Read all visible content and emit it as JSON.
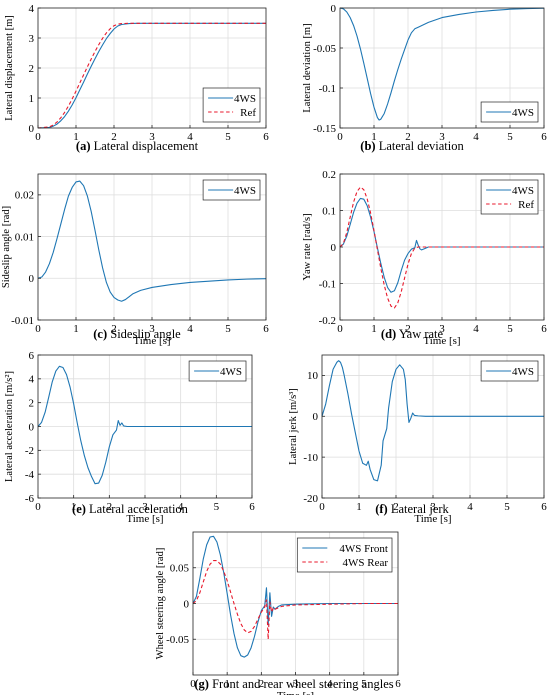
{
  "figure": {
    "colors": {
      "series_4ws": "#1f77b4",
      "series_ref": "#e8192c",
      "grid": "#dedede",
      "axis": "#262626"
    }
  },
  "chart_data": [
    {
      "id": "a",
      "type": "line",
      "caption_letter": "(a)",
      "caption_text": " Lateral displacement",
      "xlabel": "",
      "ylabel": "Lateral displacement [m]",
      "xlim": [
        0,
        6
      ],
      "ylim": [
        0,
        4
      ],
      "xticks": [
        0,
        1,
        2,
        3,
        4,
        5,
        6
      ],
      "xticklabels": [
        "0",
        "1",
        "2",
        "3",
        "4",
        "5",
        "6"
      ],
      "yticks": [
        0,
        1,
        2,
        3,
        4
      ],
      "yticklabels": [
        "0",
        "1",
        "2",
        "3",
        "4"
      ],
      "grid": true,
      "legend_placement": "bottom-right",
      "series": [
        {
          "name": "4WS",
          "style": "solid",
          "color": "#1f77b4",
          "x": [
            0,
            0.3,
            0.4,
            0.5,
            0.6,
            0.7,
            0.8,
            0.9,
            1.0,
            1.1,
            1.2,
            1.3,
            1.4,
            1.5,
            1.6,
            1.7,
            1.8,
            1.9,
            2.0,
            2.1,
            2.2,
            2.4,
            2.6,
            3.0,
            4.0,
            5.0,
            6.0
          ],
          "y": [
            0,
            0.02,
            0.06,
            0.13,
            0.24,
            0.38,
            0.56,
            0.77,
            1.01,
            1.27,
            1.53,
            1.8,
            2.06,
            2.31,
            2.55,
            2.77,
            2.98,
            3.15,
            3.3,
            3.4,
            3.45,
            3.48,
            3.49,
            3.49,
            3.49,
            3.49,
            3.49
          ]
        },
        {
          "name": "Ref",
          "style": "dashed",
          "color": "#e8192c",
          "x": [
            0,
            0.3,
            0.4,
            0.5,
            0.6,
            0.7,
            0.8,
            0.9,
            1.0,
            1.1,
            1.2,
            1.3,
            1.4,
            1.5,
            1.6,
            1.7,
            1.8,
            1.9,
            2.0,
            2.1,
            2.2,
            2.4,
            2.6,
            3.0,
            4.0,
            5.0,
            6.0
          ],
          "y": [
            0,
            0.04,
            0.1,
            0.2,
            0.34,
            0.52,
            0.73,
            0.97,
            1.23,
            1.5,
            1.77,
            2.04,
            2.3,
            2.55,
            2.78,
            2.99,
            3.17,
            3.31,
            3.41,
            3.46,
            3.48,
            3.49,
            3.49,
            3.49,
            3.49,
            3.49,
            3.49
          ]
        }
      ]
    },
    {
      "id": "b",
      "type": "line",
      "caption_letter": "(b)",
      "caption_text": " Lateral deviation",
      "xlabel": "",
      "ylabel": "Lateral deviation [m]",
      "xlim": [
        0,
        6
      ],
      "ylim": [
        -0.15,
        0
      ],
      "xticks": [
        0,
        1,
        2,
        3,
        4,
        5,
        6
      ],
      "xticklabels": [
        "0",
        "1",
        "2",
        "3",
        "4",
        "5",
        "6"
      ],
      "yticks": [
        -0.15,
        -0.1,
        -0.05,
        0
      ],
      "yticklabels": [
        "-0.15",
        "-0.1",
        "-0.05",
        "0"
      ],
      "grid": true,
      "legend_placement": "bottom-right",
      "series": [
        {
          "name": "4WS",
          "style": "solid",
          "color": "#1f77b4",
          "x": [
            0,
            0.1,
            0.2,
            0.3,
            0.4,
            0.5,
            0.6,
            0.7,
            0.8,
            0.9,
            1.0,
            1.1,
            1.15,
            1.2,
            1.3,
            1.4,
            1.5,
            1.6,
            1.7,
            1.8,
            1.9,
            2.0,
            2.1,
            2.2,
            2.3,
            2.4,
            2.6,
            2.8,
            3.0,
            3.5,
            4.0,
            4.5,
            5.0,
            5.5,
            6.0
          ],
          "y": [
            0,
            -0.001,
            -0.005,
            -0.012,
            -0.022,
            -0.035,
            -0.051,
            -0.069,
            -0.088,
            -0.107,
            -0.124,
            -0.137,
            -0.14,
            -0.139,
            -0.132,
            -0.12,
            -0.106,
            -0.091,
            -0.077,
            -0.064,
            -0.052,
            -0.04,
            -0.031,
            -0.026,
            -0.024,
            -0.022,
            -0.018,
            -0.015,
            -0.012,
            -0.008,
            -0.005,
            -0.003,
            -0.0015,
            -0.0007,
            -0.0003
          ]
        }
      ]
    },
    {
      "id": "c",
      "type": "line",
      "caption_letter": "(c)",
      "caption_text": " Sideslip angle",
      "xlabel": "Time [s]",
      "ylabel": "Sideslip angle [rad]",
      "xlim": [
        0,
        6
      ],
      "ylim": [
        -0.01,
        0.025
      ],
      "xticks": [
        0,
        1,
        2,
        3,
        4,
        5,
        6
      ],
      "xticklabels": [
        "0",
        "1",
        "2",
        "3",
        "4",
        "5",
        "6"
      ],
      "yticks": [
        -0.01,
        0,
        0.01,
        0.02
      ],
      "yticklabels": [
        "-0.01",
        "0",
        "0.01",
        "0.02"
      ],
      "grid": true,
      "legend_placement": "top-right",
      "series": [
        {
          "name": "4WS",
          "style": "solid",
          "color": "#1f77b4",
          "x": [
            0,
            0.1,
            0.2,
            0.3,
            0.4,
            0.5,
            0.6,
            0.7,
            0.8,
            0.9,
            1.0,
            1.1,
            1.2,
            1.3,
            1.4,
            1.5,
            1.6,
            1.7,
            1.8,
            1.9,
            2.0,
            2.1,
            2.2,
            2.3,
            2.4,
            2.5,
            2.7,
            3.0,
            3.5,
            4.0,
            4.5,
            5.0,
            5.5,
            6.0
          ],
          "y": [
            0,
            0.0003,
            0.0015,
            0.0035,
            0.0062,
            0.0095,
            0.013,
            0.0165,
            0.0197,
            0.0218,
            0.0231,
            0.0233,
            0.0222,
            0.0197,
            0.016,
            0.0115,
            0.0068,
            0.0025,
            -0.001,
            -0.0033,
            -0.0046,
            -0.0052,
            -0.0055,
            -0.0051,
            -0.0044,
            -0.0037,
            -0.0029,
            -0.0022,
            -0.0015,
            -0.001,
            -0.0007,
            -0.0004,
            -0.0002,
            -0.0001
          ]
        }
      ]
    },
    {
      "id": "d",
      "type": "line",
      "caption_letter": "(d)",
      "caption_text": " Yaw rate",
      "xlabel": "Time [s]",
      "ylabel": "Yaw rate [rad/s]",
      "xlim": [
        0,
        6
      ],
      "ylim": [
        -0.2,
        0.2
      ],
      "xticks": [
        0,
        1,
        2,
        3,
        4,
        5,
        6
      ],
      "xticklabels": [
        "0",
        "1",
        "2",
        "3",
        "4",
        "5",
        "6"
      ],
      "yticks": [
        -0.2,
        -0.1,
        0,
        0.1,
        0.2
      ],
      "yticklabels": [
        "-0.2",
        "-0.1",
        "0",
        "0.1",
        "0.2"
      ],
      "grid": true,
      "legend_placement": "top-right",
      "series": [
        {
          "name": "4WS",
          "style": "solid",
          "color": "#1f77b4",
          "x": [
            0,
            0.1,
            0.2,
            0.3,
            0.4,
            0.5,
            0.6,
            0.7,
            0.8,
            0.9,
            1.0,
            1.1,
            1.2,
            1.3,
            1.4,
            1.5,
            1.6,
            1.7,
            1.8,
            1.9,
            2.0,
            2.1,
            2.2,
            2.25,
            2.3,
            2.35,
            2.4,
            2.5,
            2.6,
            3.0,
            4.0,
            5.0,
            6.0
          ],
          "y": [
            0,
            0.008,
            0.03,
            0.062,
            0.095,
            0.12,
            0.133,
            0.131,
            0.113,
            0.082,
            0.042,
            -0.002,
            -0.045,
            -0.083,
            -0.111,
            -0.124,
            -0.12,
            -0.098,
            -0.065,
            -0.036,
            -0.018,
            -0.006,
            -0.002,
            0.018,
            0.005,
            -0.005,
            -0.008,
            -0.004,
            0.0,
            0.0,
            0.0,
            0.0,
            0.0
          ]
        },
        {
          "name": "Ref",
          "style": "dashed",
          "color": "#e8192c",
          "x": [
            0,
            0.1,
            0.2,
            0.3,
            0.4,
            0.5,
            0.6,
            0.7,
            0.8,
            0.9,
            1.0,
            1.1,
            1.2,
            1.3,
            1.4,
            1.5,
            1.6,
            1.7,
            1.8,
            1.9,
            2.0,
            2.1,
            2.2,
            2.3,
            2.4,
            3.0,
            4.0,
            5.0,
            6.0
          ],
          "y": [
            0,
            0.01,
            0.04,
            0.082,
            0.123,
            0.152,
            0.164,
            0.157,
            0.132,
            0.093,
            0.045,
            -0.007,
            -0.058,
            -0.104,
            -0.14,
            -0.162,
            -0.167,
            -0.153,
            -0.123,
            -0.085,
            -0.047,
            -0.018,
            -0.003,
            0.0,
            0.0,
            0.0,
            0.0,
            0.0,
            0.0
          ]
        }
      ]
    },
    {
      "id": "e",
      "type": "line",
      "caption_letter": "(e)",
      "caption_text": " Lateral acceleration",
      "xlabel": "Time [s]",
      "ylabel": "Lateral acceleration [m/s²]",
      "xlim": [
        0,
        6
      ],
      "ylim": [
        -6,
        6
      ],
      "xticks": [
        0,
        1,
        2,
        3,
        4,
        5,
        6
      ],
      "xticklabels": [
        "0",
        "1",
        "2",
        "3",
        "4",
        "5",
        "6"
      ],
      "yticks": [
        -6,
        -4,
        -2,
        0,
        2,
        4,
        6
      ],
      "yticklabels": [
        "-6",
        "-4",
        "-2",
        "0",
        "2",
        "4",
        "6"
      ],
      "grid": true,
      "legend_placement": "top-right",
      "series": [
        {
          "name": "4WS",
          "style": "solid",
          "color": "#1f77b4",
          "x": [
            0,
            0.1,
            0.2,
            0.3,
            0.4,
            0.5,
            0.6,
            0.7,
            0.8,
            0.9,
            1.0,
            1.1,
            1.2,
            1.3,
            1.4,
            1.5,
            1.6,
            1.7,
            1.8,
            1.9,
            2.0,
            2.1,
            2.2,
            2.25,
            2.3,
            2.35,
            2.4,
            2.5,
            3.0,
            4.0,
            5.0,
            6.0
          ],
          "y": [
            0,
            0.35,
            1.2,
            2.45,
            3.75,
            4.65,
            5.05,
            4.95,
            4.35,
            3.3,
            1.9,
            0.3,
            -1.2,
            -2.45,
            -3.45,
            -4.2,
            -4.8,
            -4.75,
            -4.1,
            -3.0,
            -1.7,
            -0.7,
            -0.3,
            0.5,
            0.1,
            0.3,
            0.05,
            0.0,
            0.0,
            0.0,
            0.0,
            0.0
          ]
        }
      ]
    },
    {
      "id": "f",
      "type": "line",
      "caption_letter": "(f)",
      "caption_text": " Lateral jerk",
      "xlabel": "Time [s]",
      "ylabel": "Lateral jerk [m/s³]",
      "xlim": [
        0,
        6
      ],
      "ylim": [
        -20,
        15
      ],
      "xticks": [
        0,
        1,
        2,
        3,
        4,
        5,
        6
      ],
      "xticklabels": [
        "0",
        "1",
        "2",
        "3",
        "4",
        "5",
        "6"
      ],
      "yticks": [
        -20,
        -10,
        0,
        10
      ],
      "yticklabels": [
        "-20",
        "-10",
        "0",
        "10"
      ],
      "grid": true,
      "legend_placement": "top-right",
      "series": [
        {
          "name": "4WS",
          "style": "solid",
          "color": "#1f77b4",
          "x": [
            0,
            0.1,
            0.2,
            0.3,
            0.4,
            0.45,
            0.5,
            0.55,
            0.6,
            0.7,
            0.8,
            0.9,
            1.0,
            1.1,
            1.2,
            1.25,
            1.3,
            1.4,
            1.5,
            1.6,
            1.65,
            1.7,
            1.75,
            1.8,
            1.9,
            2.0,
            2.1,
            2.2,
            2.25,
            2.3,
            2.35,
            2.4,
            2.45,
            2.5,
            2.6,
            2.8,
            3.0,
            4.0,
            5.0,
            6.0
          ],
          "y": [
            0,
            3.0,
            7.5,
            11.5,
            13.2,
            13.6,
            13.2,
            12.0,
            10.0,
            5.5,
            0.5,
            -4.0,
            -8.5,
            -11.5,
            -12.0,
            -11.0,
            -13.0,
            -15.5,
            -15.8,
            -12.0,
            -6.0,
            -4.5,
            -3.0,
            2.0,
            8.5,
            11.5,
            12.6,
            11.5,
            9.0,
            3.0,
            -1.5,
            -0.5,
            0.8,
            0.2,
            0.1,
            0.0,
            0.0,
            0.0,
            0.0,
            0.0
          ]
        }
      ]
    },
    {
      "id": "g",
      "type": "line",
      "caption_letter": "(g)",
      "caption_text": " Front and rear wheel steering angles",
      "xlabel": "Time [s]",
      "ylabel": "Wheel steering angle [rad]",
      "xlim": [
        0,
        6
      ],
      "ylim": [
        -0.1,
        0.1
      ],
      "xticks": [
        0,
        1,
        2,
        3,
        4,
        5,
        6
      ],
      "xticklabels": [
        "0",
        "1",
        "2",
        "3",
        "4",
        "5",
        "6"
      ],
      "yticks": [
        -0.05,
        0,
        0.05
      ],
      "yticklabels": [
        "-0.05",
        "0",
        "0.05"
      ],
      "grid": true,
      "legend_placement": "top-right",
      "series": [
        {
          "name": "4WS Front",
          "style": "solid",
          "color": "#1f77b4",
          "x": [
            0,
            0.1,
            0.2,
            0.3,
            0.4,
            0.5,
            0.6,
            0.7,
            0.8,
            0.9,
            1.0,
            1.1,
            1.2,
            1.3,
            1.4,
            1.5,
            1.6,
            1.7,
            1.8,
            1.9,
            2.0,
            2.1,
            2.15,
            2.2,
            2.25,
            2.3,
            2.35,
            2.4,
            2.5,
            2.6,
            3.0,
            4.0,
            5.0,
            6.0
          ],
          "y": [
            0,
            0.01,
            0.035,
            0.062,
            0.082,
            0.093,
            0.094,
            0.086,
            0.068,
            0.043,
            0.014,
            -0.016,
            -0.042,
            -0.062,
            -0.073,
            -0.075,
            -0.072,
            -0.062,
            -0.046,
            -0.026,
            -0.01,
            -0.003,
            0.022,
            -0.03,
            0.015,
            -0.018,
            -0.005,
            -0.008,
            -0.004,
            -0.002,
            -0.001,
            0.0,
            0.0,
            0.0
          ]
        },
        {
          "name": "4WS Rear",
          "style": "dashed",
          "color": "#e8192c",
          "x": [
            0,
            0.1,
            0.2,
            0.3,
            0.4,
            0.5,
            0.6,
            0.7,
            0.8,
            0.9,
            1.0,
            1.1,
            1.2,
            1.3,
            1.4,
            1.5,
            1.6,
            1.7,
            1.8,
            1.9,
            2.0,
            2.1,
            2.15,
            2.2,
            2.25,
            2.3,
            2.35,
            2.4,
            2.5,
            2.6,
            3.0,
            4.0,
            5.0,
            6.0
          ],
          "y": [
            0,
            0.004,
            0.015,
            0.03,
            0.045,
            0.055,
            0.06,
            0.06,
            0.055,
            0.045,
            0.032,
            0.016,
            0.0,
            -0.015,
            -0.028,
            -0.037,
            -0.041,
            -0.039,
            -0.032,
            -0.022,
            -0.012,
            -0.005,
            0.005,
            -0.05,
            0.002,
            -0.012,
            -0.006,
            -0.008,
            -0.006,
            -0.004,
            -0.002,
            -0.001,
            0.0,
            0.0
          ]
        }
      ]
    }
  ]
}
